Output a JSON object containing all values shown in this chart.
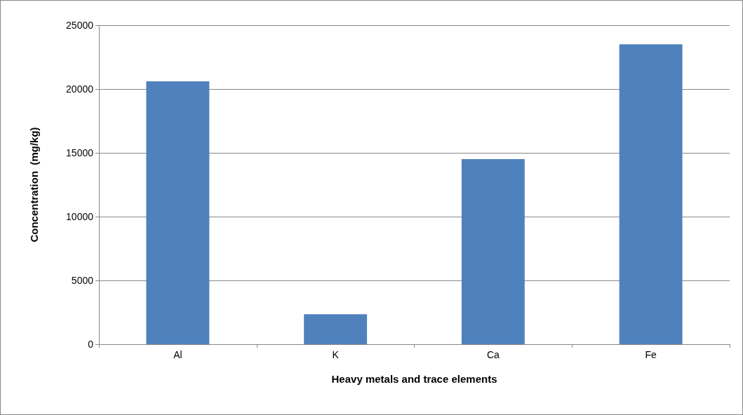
{
  "chart_data": {
    "type": "bar",
    "xlabel": "Heavy metals and trace elements",
    "ylabel": "Concentration  (mg/kg)",
    "categories": [
      "Al",
      "K",
      "Ca",
      "Fe"
    ],
    "series": [
      {
        "color": "#4f81bd",
        "values": [
          20600,
          2350,
          14500,
          23500
        ]
      }
    ],
    "ylim": [
      0,
      25000
    ],
    "yticks": [
      0,
      5000,
      10000,
      15000,
      20000,
      25000
    ],
    "grid": "y"
  }
}
